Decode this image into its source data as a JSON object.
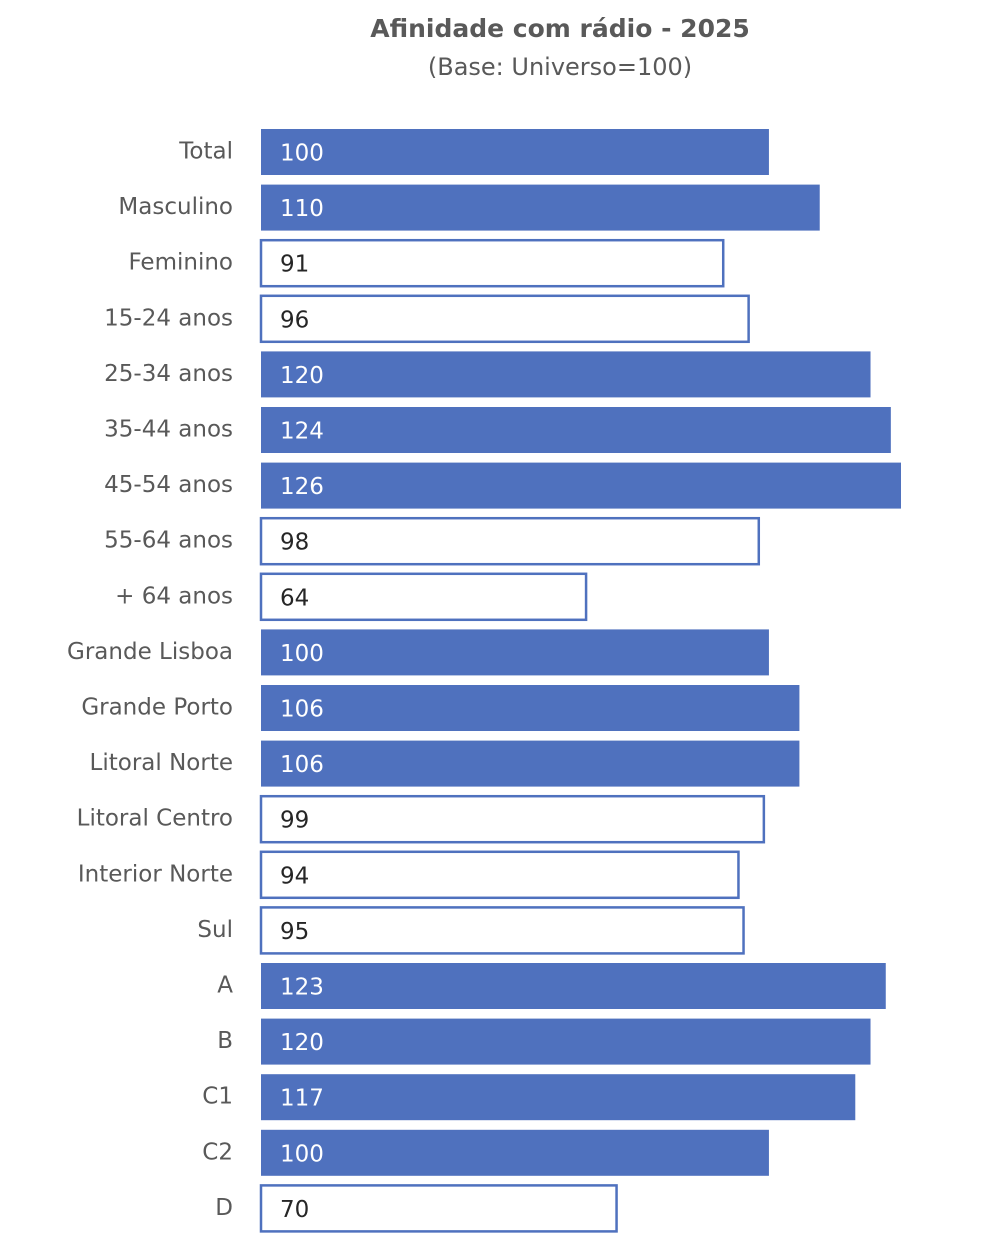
{
  "chart_data": {
    "type": "hbar",
    "title": "Afinidade com rádio - 2025",
    "subtitle": "(Base: Universo=100)",
    "categories": [
      "Total",
      "Masculino",
      "Feminino",
      "15-24 anos",
      "25-34 anos",
      "35-44 anos",
      "45-54 anos",
      "55-64 anos",
      "+ 64  anos",
      "Grande Lisboa",
      "Grande Porto",
      "Litoral Norte",
      "Litoral Centro",
      "Interior Norte",
      "Sul",
      "A",
      "B",
      "C1",
      "C2",
      "D"
    ],
    "values": [
      100,
      110,
      91,
      96,
      120,
      124,
      126,
      98,
      64,
      100,
      106,
      106,
      99,
      94,
      95,
      123,
      120,
      117,
      100,
      70
    ],
    "color": "#4f71be",
    "fills": [
      "#4f71be",
      "#4f71be",
      "#ffffff",
      "#ffffff",
      "#4f71be",
      "#4f71be",
      "#4f71be",
      "#ffffff",
      "#ffffff",
      "#4f71be",
      "#4f71be",
      "#4f71be",
      "#ffffff",
      "#ffffff",
      "#ffffff",
      "#4f71be",
      "#4f71be",
      "#4f71be",
      "#4f71be",
      "#ffffff"
    ]
  }
}
